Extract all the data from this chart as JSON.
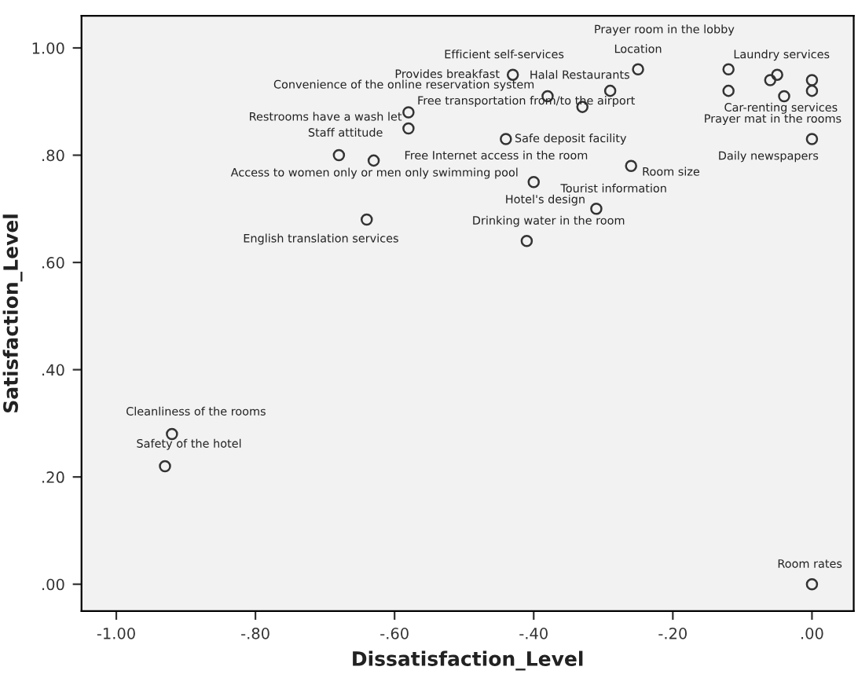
{
  "chart_data": {
    "type": "scatter",
    "xlabel": "Dissatisfaction_Level",
    "ylabel": "Satisfaction_Level",
    "xlim": [
      -1.05,
      0.06
    ],
    "ylim": [
      -0.05,
      1.06
    ],
    "xticks": [
      {
        "value": -1.0,
        "label": "-1.00"
      },
      {
        "value": -0.8,
        "label": "-.80"
      },
      {
        "value": -0.6,
        "label": "-.60"
      },
      {
        "value": -0.4,
        "label": "-.40"
      },
      {
        "value": -0.2,
        "label": "-.20"
      },
      {
        "value": 0,
        "label": ".00"
      }
    ],
    "yticks": [
      {
        "value": 0,
        "label": ".00"
      },
      {
        "value": 0.2,
        "label": ".20"
      },
      {
        "value": 0.4,
        "label": ".40"
      },
      {
        "value": 0.6,
        "label": ".60"
      },
      {
        "value": 0.8,
        "label": ".80"
      },
      {
        "value": 1.0,
        "label": "1.00"
      }
    ],
    "grid": false,
    "marker": "circle",
    "series": [
      {
        "color": "#333333",
        "x": [
          -0.43,
          -0.25,
          -0.12,
          -0.05,
          -0.06,
          -0.29,
          -0.12,
          -0.04,
          0.0,
          0.0,
          -0.38,
          -0.33,
          -0.58,
          -0.58,
          -0.44,
          0.0,
          -0.68,
          -0.63,
          -0.26,
          -0.4,
          -0.31,
          -0.64,
          -0.41,
          -0.92,
          -0.93,
          0.0
        ],
        "values": [
          0.95,
          0.96,
          0.96,
          0.95,
          0.94,
          0.92,
          0.92,
          0.91,
          0.94,
          0.92,
          0.91,
          0.89,
          0.88,
          0.85,
          0.83,
          0.83,
          0.8,
          0.79,
          0.78,
          0.75,
          0.7,
          0.68,
          0.64,
          0.28,
          0.22,
          0.0
        ]
      }
    ],
    "annotations": [
      {
        "text": "Prayer room in the lobby",
        "x": -0.25,
        "y": 0.96
      },
      {
        "text": "Provides breakfast",
        "x": -0.43,
        "y": 0.95
      },
      {
        "text": "Efficient self-services",
        "x": -0.43,
        "y": 0.95
      },
      {
        "text": "Location",
        "x": -0.25,
        "y": 0.96
      },
      {
        "text": "Laundry services",
        "x": -0.05,
        "y": 0.95
      },
      {
        "text": "Halal Restaurants",
        "x": -0.29,
        "y": 0.92
      },
      {
        "text": "Convenience of the online reservation system",
        "x": -0.38,
        "y": 0.91
      },
      {
        "text": "Free transportation from/to the airport",
        "x": -0.58,
        "y": 0.88
      },
      {
        "text": "Car-renting services",
        "x": -0.12,
        "y": 0.92
      },
      {
        "text": "Prayer mat in the rooms",
        "x": 0.0,
        "y": 0.83
      },
      {
        "text": "Restrooms have a wash let",
        "x": -0.58,
        "y": 0.85
      },
      {
        "text": "Safe deposit facility",
        "x": -0.44,
        "y": 0.83
      },
      {
        "text": "Staff attitude",
        "x": -0.68,
        "y": 0.8
      },
      {
        "text": "Daily newspapers",
        "x": 0.0,
        "y": 0.83
      },
      {
        "text": "Free Internet access in the room",
        "x": -0.63,
        "y": 0.79
      },
      {
        "text": "Access to women only or men only swimming pool",
        "x": -0.4,
        "y": 0.75
      },
      {
        "text": "Room size",
        "x": -0.26,
        "y": 0.78
      },
      {
        "text": "Hotel's design",
        "x": -0.31,
        "y": 0.7
      },
      {
        "text": "Tourist information",
        "x": -0.31,
        "y": 0.7
      },
      {
        "text": "English translation services",
        "x": -0.64,
        "y": 0.68
      },
      {
        "text": "Drinking water in the room",
        "x": -0.41,
        "y": 0.64
      },
      {
        "text": "Cleanliness of the rooms",
        "x": -0.92,
        "y": 0.28
      },
      {
        "text": "Safety of the hotel",
        "x": -0.93,
        "y": 0.22
      },
      {
        "text": "Room rates",
        "x": 0.0,
        "y": 0.0
      }
    ]
  }
}
